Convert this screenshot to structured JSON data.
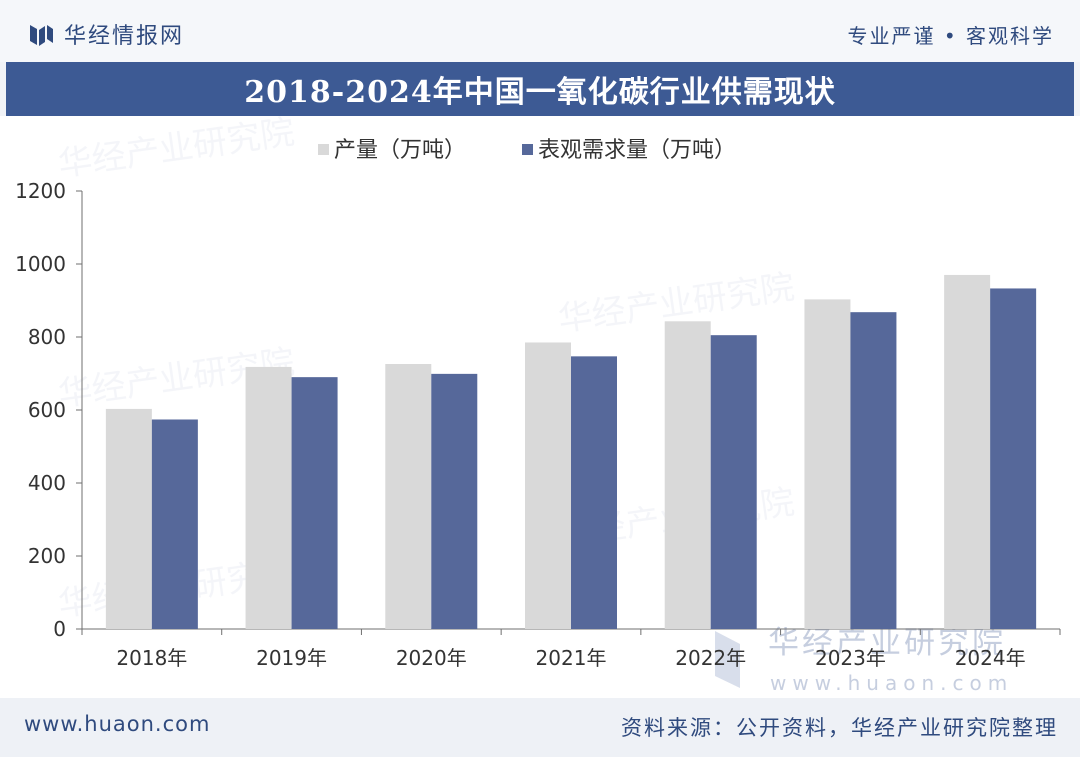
{
  "header": {
    "brand_name": "华经情报网",
    "slogan": "专业严谨 • 客观科学"
  },
  "title": "2018-2024年中国一氧化碳行业供需现状",
  "chart_data": {
    "type": "bar",
    "title": "2018-2024年中国一氧化碳行业供需现状",
    "categories": [
      "2018年",
      "2019年",
      "2020年",
      "2021年",
      "2022年",
      "2023年",
      "2024年"
    ],
    "series": [
      {
        "name": "产量（万吨）",
        "color": "#d9d9d9",
        "values": [
          603,
          718,
          726,
          785,
          843,
          903,
          970
        ]
      },
      {
        "name": "表观需求量（万吨）",
        "color": "#56689a",
        "values": [
          574,
          690,
          699,
          747,
          805,
          868,
          933
        ]
      }
    ],
    "ylim": [
      0,
      1200
    ],
    "yticks": [
      0,
      200,
      400,
      600,
      800,
      1000,
      1200
    ],
    "xlabel": "",
    "ylabel": "",
    "legend": "top-left",
    "grid": false
  },
  "watermark": {
    "name": "华经产业研究院",
    "url": "www.huaon.com"
  },
  "footer": {
    "website": "www.huaon.com",
    "source": "资料来源：公开资料，华经产业研究院整理"
  }
}
